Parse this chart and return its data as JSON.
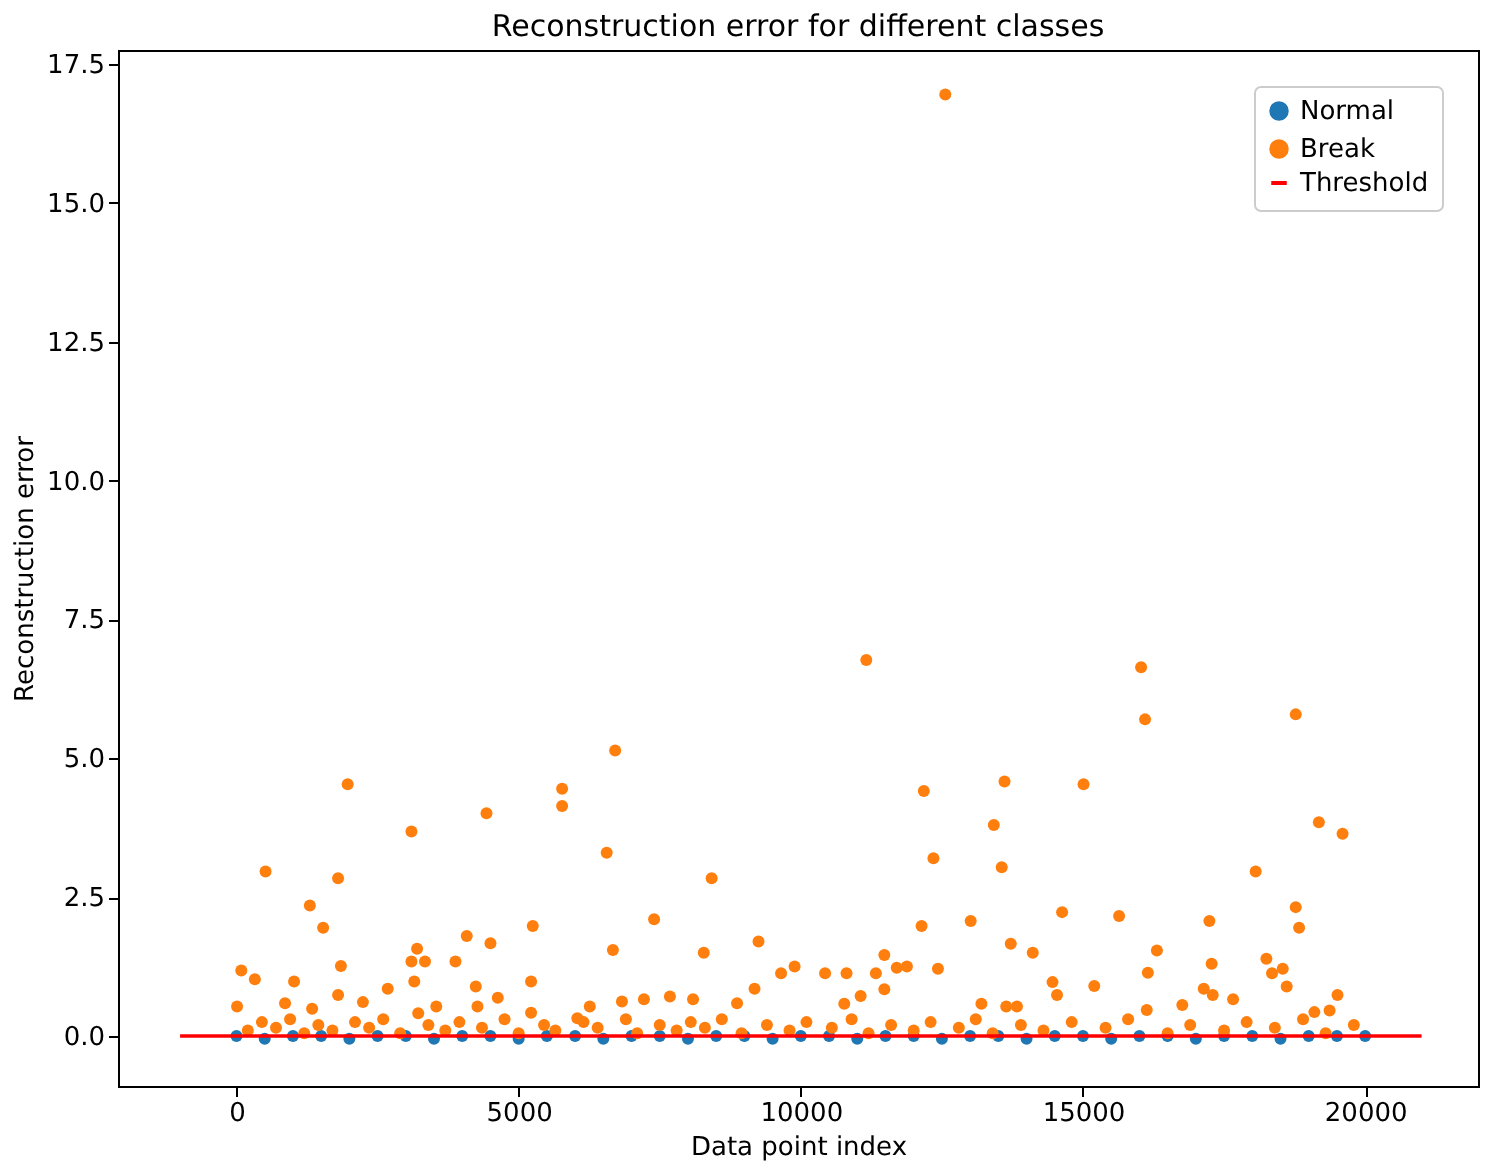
{
  "chart_data": {
    "type": "scatter",
    "title": "Reconstruction error for different classes",
    "xlabel": "Data point index",
    "ylabel": "Reconstruction error",
    "xlim": [
      -2100,
      22000
    ],
    "xticks": [
      0,
      5000,
      10000,
      15000,
      20000
    ],
    "ylim": [
      -0.9,
      17.75
    ],
    "yticks": [
      {
        "value": 0,
        "label": "0.0"
      },
      2.5,
      {
        "value": 5,
        "label": "5.0"
      },
      7.5,
      {
        "value": 10,
        "label": "10.0"
      },
      12.5,
      {
        "value": 15,
        "label": "15.0"
      },
      17.5
    ],
    "grid": false,
    "legend": "top right",
    "series": [
      {
        "name": "Normal",
        "color": "#1f77b4",
        "marker": "circle",
        "x": [
          0,
          500,
          1000,
          1500,
          2000,
          2500,
          3000,
          3500,
          4000,
          4500,
          5000,
          5500,
          6000,
          6500,
          7000,
          7500,
          8000,
          8500,
          9000,
          9500,
          10000,
          10500,
          11000,
          11500,
          12000,
          12500,
          13000,
          13500,
          14000,
          14500,
          15000,
          15500,
          16000,
          16500,
          17000,
          17500,
          18000,
          18500,
          19000,
          19500,
          20000
        ],
        "values": [
          0,
          -0.05,
          0,
          0,
          -0.05,
          0,
          0,
          -0.05,
          0,
          0,
          -0.05,
          0,
          0,
          -0.05,
          0,
          0,
          -0.05,
          0,
          0,
          -0.05,
          0,
          0,
          -0.05,
          0,
          0,
          -0.05,
          0,
          0,
          -0.05,
          0,
          0,
          -0.05,
          0,
          0,
          -0.05,
          0,
          0,
          -0.05,
          0,
          0,
          0
        ]
      },
      {
        "name": "Break",
        "color": "#ff7f0e",
        "marker": "circle",
        "x": [
          1970,
          515,
          3100,
          4430,
          5770,
          5770,
          1800,
          1300,
          1535,
          5250,
          85,
          325,
          10,
          1020,
          1850,
          1800,
          3200,
          3100,
          3340,
          3150,
          4080,
          4500,
          3880,
          4240,
          4630,
          5220,
          5220,
          1340,
          860,
          2680,
          2240,
          3540,
          4270,
          3220,
          11160,
          6710,
          6560,
          8420,
          7400,
          6670,
          8280,
          9250,
          9180,
          9650,
          9890,
          10430,
          10810,
          11330,
          11480,
          11480,
          11700,
          11880,
          12180,
          12350,
          12140,
          12430,
          13610,
          13420,
          13560,
          13010,
          13720,
          14110,
          13200,
          13640,
          13830,
          6260,
          6830,
          7220,
          7680,
          8090,
          8870,
          10770,
          11060,
          6040,
          12560,
          16030,
          16100,
          18770,
          15010,
          19180,
          19600,
          18060,
          14630,
          15640,
          17240,
          18770,
          18830,
          16310,
          16150,
          17280,
          18250,
          18350,
          18540,
          18610,
          15200,
          14460,
          14540,
          17140,
          17300,
          19510,
          17660,
          16760,
          16130,
          19100,
          19370,
          200,
          450,
          700,
          950,
          1200,
          1450,
          1700,
          2100,
          2350,
          2600,
          2900,
          3400,
          3700,
          3950,
          4350,
          4750,
          5000,
          5450,
          5650,
          6150,
          6400,
          6900,
          7100,
          7500,
          7800,
          8050,
          8300,
          8600,
          8950,
          9400,
          9800,
          10100,
          10550,
          10900,
          11200,
          11600,
          12000,
          12300,
          12800,
          13100,
          13400,
          13900,
          14300,
          14800,
          15400,
          15800,
          16500,
          16900,
          17500,
          17900,
          18400,
          18900,
          19300,
          19800
        ],
        "values": [
          4.53,
          2.96,
          3.68,
          4.01,
          4.45,
          4.14,
          2.84,
          2.35,
          1.95,
          1.98,
          1.18,
          1.02,
          0.53,
          0.98,
          1.26,
          0.74,
          1.57,
          1.34,
          1.34,
          0.98,
          1.8,
          1.67,
          1.34,
          0.89,
          0.69,
          0.98,
          0.42,
          0.49,
          0.59,
          0.85,
          0.61,
          0.53,
          0.53,
          0.41,
          6.77,
          5.14,
          3.3,
          2.84,
          2.1,
          1.55,
          1.5,
          1.7,
          0.85,
          1.13,
          1.25,
          1.13,
          1.13,
          1.13,
          1.46,
          0.84,
          1.23,
          1.25,
          4.41,
          3.2,
          1.98,
          1.21,
          4.58,
          3.8,
          3.04,
          2.07,
          1.66,
          1.5,
          0.58,
          0.53,
          0.53,
          0.53,
          0.62,
          0.66,
          0.71,
          0.66,
          0.59,
          0.58,
          0.72,
          0.32,
          16.95,
          6.64,
          5.7,
          5.79,
          4.53,
          3.85,
          3.64,
          2.96,
          2.23,
          2.16,
          2.07,
          2.32,
          1.95,
          1.54,
          1.14,
          1.3,
          1.39,
          1.13,
          1.21,
          0.89,
          0.9,
          0.97,
          0.74,
          0.85,
          0.74,
          0.74,
          0.66,
          0.56,
          0.47,
          0.43,
          0.46,
          0.1,
          0.25,
          0.15,
          0.3,
          0.05,
          0.2,
          0.1,
          0.25,
          0.15,
          0.3,
          0.05,
          0.2,
          0.1,
          0.25,
          0.15,
          0.3,
          0.05,
          0.2,
          0.1,
          0.25,
          0.15,
          0.3,
          0.05,
          0.2,
          0.1,
          0.25,
          0.15,
          0.3,
          0.05,
          0.2,
          0.1,
          0.25,
          0.15,
          0.3,
          0.05,
          0.2,
          0.1,
          0.25,
          0.15,
          0.3,
          0.05,
          0.2,
          0.1,
          0.25,
          0.15,
          0.3,
          0.05,
          0.2,
          0.1,
          0.25,
          0.15,
          0.3,
          0.05,
          0.2
        ]
      },
      {
        "name": "Threshold",
        "color": "#ff0000",
        "type": "line",
        "marker": "none",
        "x": [
          -1000,
          21000
        ],
        "values": [
          0,
          0
        ]
      }
    ]
  }
}
